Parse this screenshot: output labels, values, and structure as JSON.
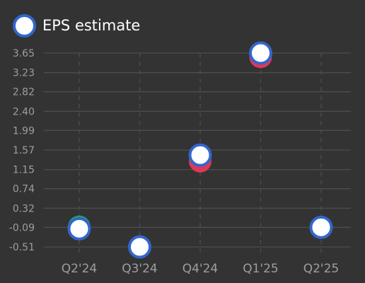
{
  "chart_data": {
    "type": "scatter",
    "categories": [
      "Q2'24",
      "Q3'24",
      "Q4'24",
      "Q1'25",
      "Q2'25"
    ],
    "y_ticks": [
      "3.65",
      "3.23",
      "2.82",
      "2.40",
      "1.99",
      "1.57",
      "1.15",
      "0.74",
      "0.32",
      "-0.09",
      "-0.51"
    ],
    "ylim": [
      -0.51,
      3.65
    ],
    "grid": "on",
    "legend_position": "top-left",
    "series": [
      {
        "name": "EPS estimate",
        "values": [
          -0.12,
          -0.51,
          1.46,
          3.65,
          -0.09
        ],
        "color": "#3366cc",
        "fill": "#ffffff"
      }
    ],
    "actual_values": [
      -0.08,
      null,
      1.33,
      3.57,
      null
    ],
    "actual_colors": {
      "beat": "#21a366",
      "miss": "#dc3a57"
    }
  },
  "colors": {
    "background": "#333333",
    "grid": "#4d4d4d",
    "tick_label": "#9e9e9e",
    "legend_text": "#ffffff"
  }
}
